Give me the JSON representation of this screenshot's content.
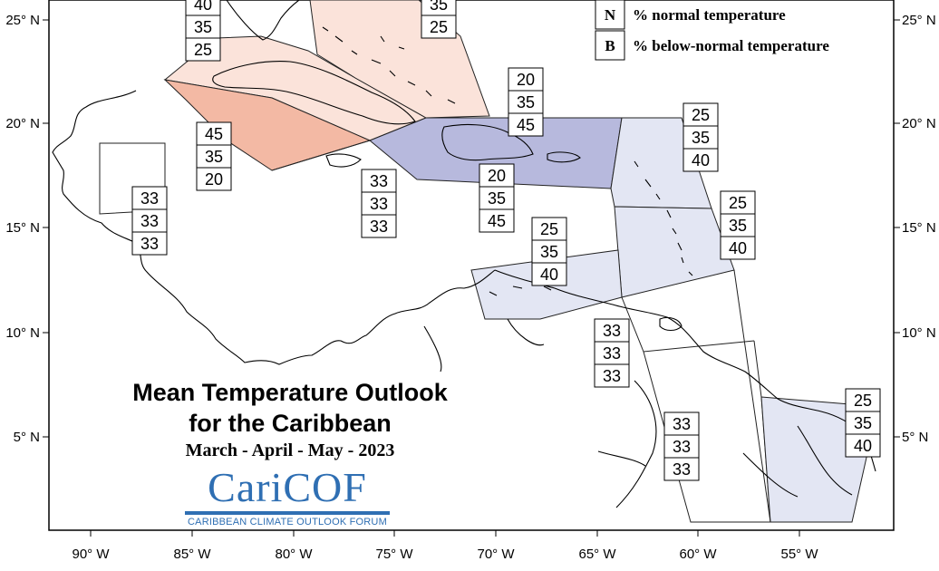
{
  "map": {
    "title_line1": "Mean Temperature Outlook",
    "title_line2": "for the Caribbean",
    "season": "March - April - May - 2023",
    "logo_text": "CariCOF",
    "logo_subtitle": "CARIBBEAN CLIMATE OUTLOOK FORUM",
    "legend": [
      {
        "key": "N",
        "label": "% normal temperature"
      },
      {
        "key": "B",
        "label": "% below-normal temperature"
      }
    ],
    "lat_labels": [
      "25° N",
      "20° N",
      "15° N",
      "10° N",
      "5° N"
    ],
    "lon_labels": [
      "90° W",
      "85° W",
      "80° W",
      "75° W",
      "70° W",
      "65° W",
      "60° W",
      "55° W"
    ],
    "colors": {
      "above_light": "#fbe3da",
      "above_medium": "#f3b9a4",
      "below_strong": "#b7b9dd",
      "below_light": "#e3e6f3",
      "outline": "#000000",
      "logo": "#2f6fb3"
    },
    "regions": [
      {
        "name": "bahamas-north",
        "values": [
          "40",
          "35",
          "25"
        ]
      },
      {
        "name": "bahamas-east",
        "values": [
          "35",
          "25"
        ]
      },
      {
        "name": "western-caribbean",
        "values": [
          "45",
          "35",
          "20"
        ]
      },
      {
        "name": "central-america",
        "values": [
          "33",
          "33",
          "33"
        ]
      },
      {
        "name": "jamaica",
        "values": [
          "33",
          "33",
          "33"
        ]
      },
      {
        "name": "turks-caicos",
        "values": [
          "20",
          "35",
          "45"
        ]
      },
      {
        "name": "hispaniola-pr",
        "values": [
          "20",
          "35",
          "45"
        ]
      },
      {
        "name": "northern-leewards",
        "values": [
          "25",
          "35",
          "40"
        ]
      },
      {
        "name": "windwards",
        "values": [
          "25",
          "35",
          "40"
        ]
      },
      {
        "name": "abc-islands",
        "values": [
          "25",
          "35",
          "40"
        ]
      },
      {
        "name": "trinidad-venezuela",
        "values": [
          "33",
          "33",
          "33"
        ]
      },
      {
        "name": "guyana",
        "values": [
          "33",
          "33",
          "33"
        ]
      },
      {
        "name": "suriname-guiana",
        "values": [
          "25",
          "35",
          "40"
        ]
      }
    ]
  }
}
